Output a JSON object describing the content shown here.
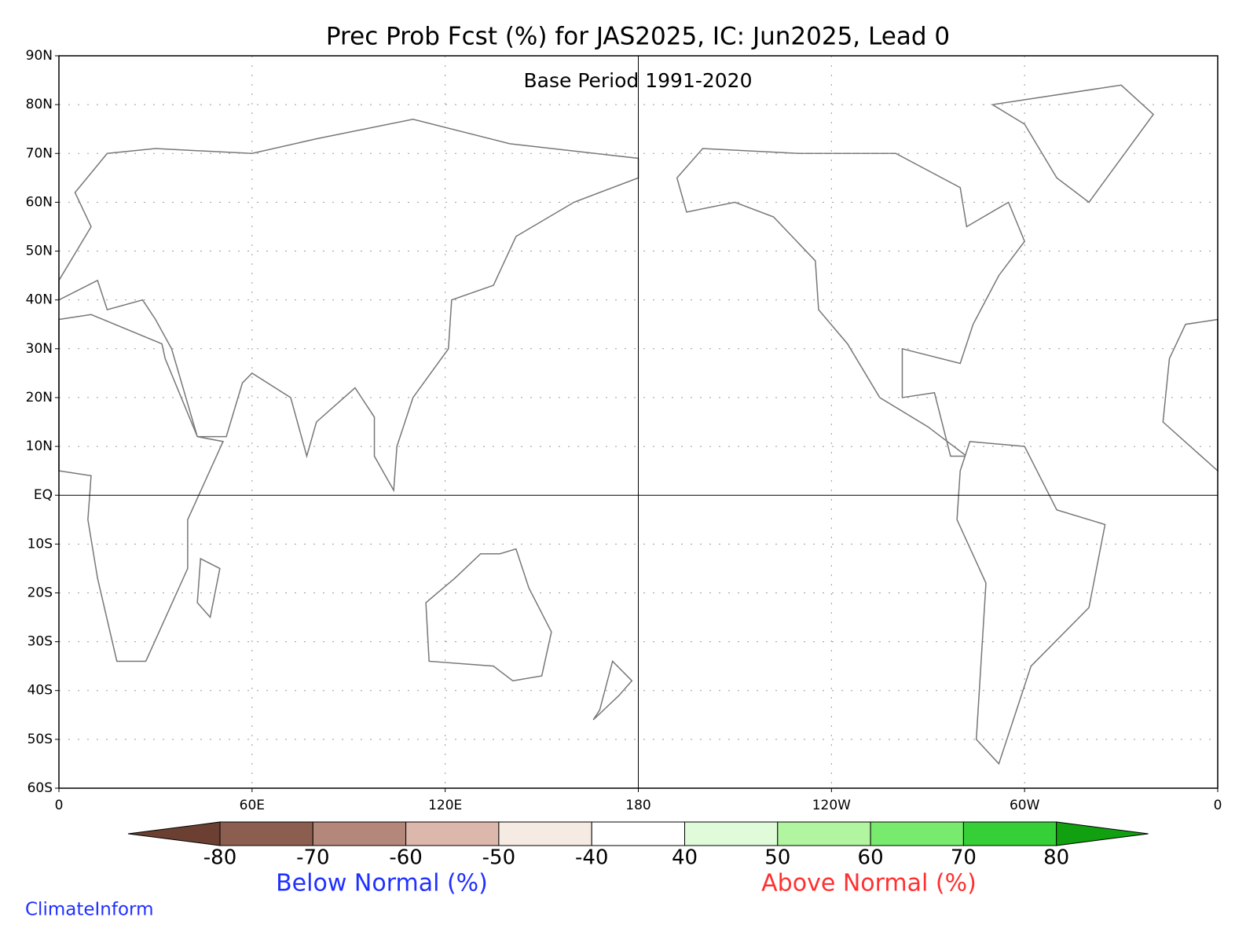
{
  "title": "Prec Prob Fcst (%) for JAS2025, IC: Jun2025, Lead 0",
  "subtitle": "Base Period 1991-2020",
  "map": {
    "xlim": [
      0,
      360
    ],
    "ylim": [
      -60,
      90
    ],
    "xticks": [
      0,
      {
        "value": 60,
        "label": "60E"
      },
      {
        "value": 120,
        "label": "120E"
      },
      180,
      {
        "value": 240,
        "label": "120W"
      },
      {
        "value": 300,
        "label": "60W"
      },
      {
        "value": 360,
        "label": "0"
      }
    ],
    "yticks": [
      {
        "value": 90,
        "label": "90N"
      },
      {
        "value": 80,
        "label": "80N"
      },
      {
        "value": 70,
        "label": "70N"
      },
      {
        "value": 60,
        "label": "60N"
      },
      {
        "value": 50,
        "label": "50N"
      },
      {
        "value": 40,
        "label": "40N"
      },
      {
        "value": 30,
        "label": "30N"
      },
      {
        "value": 20,
        "label": "20N"
      },
      {
        "value": 10,
        "label": "10N"
      },
      {
        "value": 0,
        "label": "EQ"
      },
      {
        "value": -10,
        "label": "10S"
      },
      {
        "value": -20,
        "label": "20S"
      },
      {
        "value": -30,
        "label": "30S"
      },
      {
        "value": -40,
        "label": "40S"
      },
      {
        "value": -50,
        "label": "50S"
      },
      {
        "value": -60,
        "label": "60S"
      }
    ],
    "grid": true
  },
  "colorbar": {
    "ticks": [
      -80,
      -70,
      -60,
      -50,
      -40,
      40,
      50,
      60,
      70,
      80
    ],
    "colors": [
      "#6b4032",
      "#8c5e50",
      "#b3887a",
      "#dbb8ab",
      "#f5ebe3",
      "#ffffff",
      "#e0fbd9",
      "#b1f5a0",
      "#78eb6e",
      "#37cf37",
      "#10a010"
    ],
    "below_label": "Below Normal (%)",
    "above_label": "Above Normal (%)"
  },
  "footer": "ClimateInform"
}
